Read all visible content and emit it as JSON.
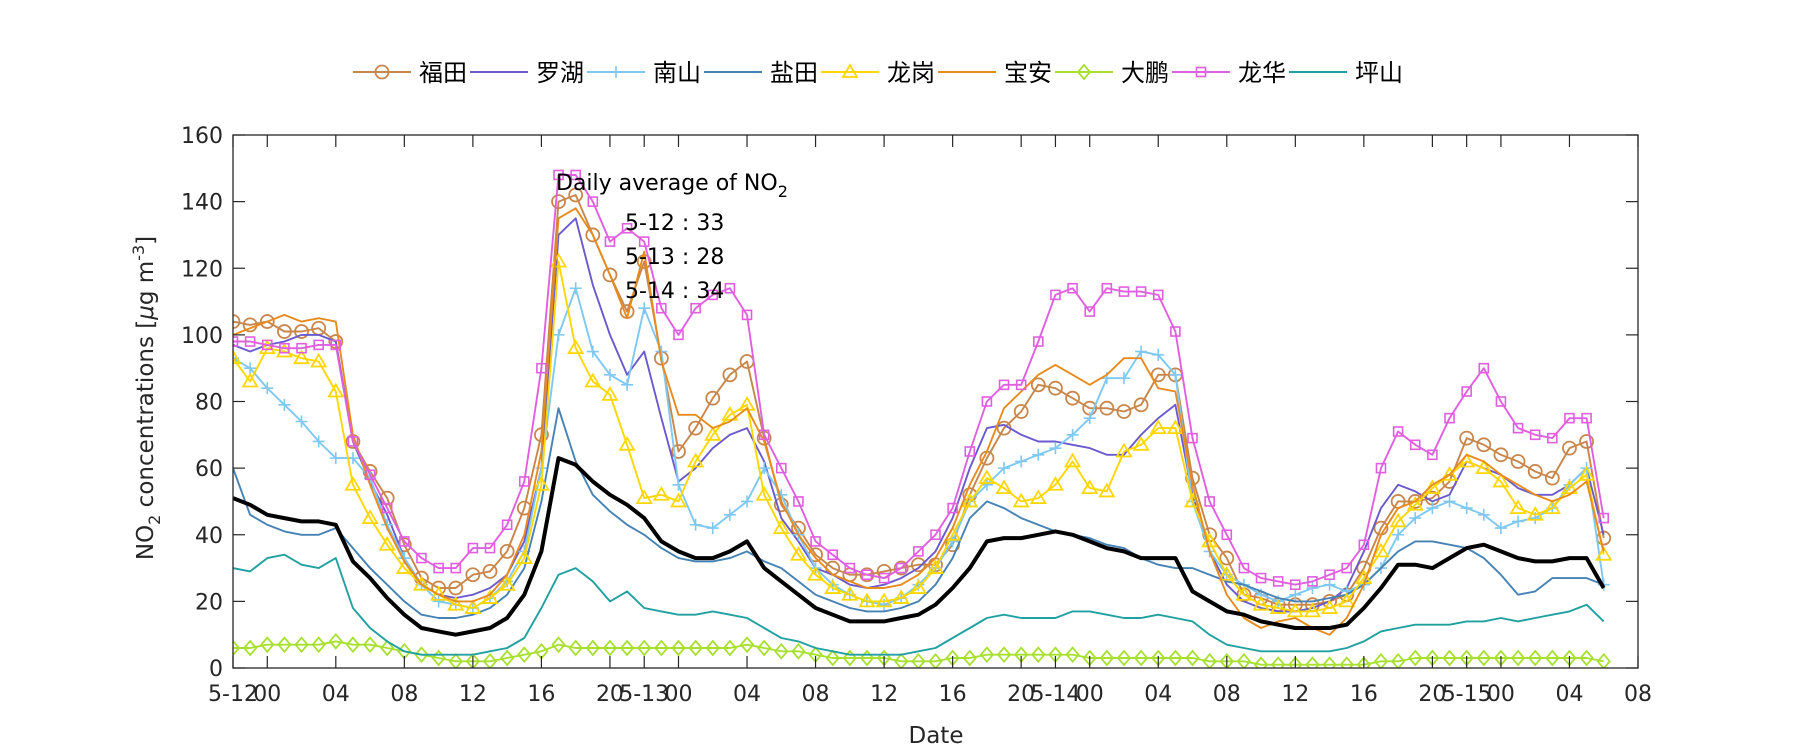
{
  "chart_data": {
    "type": "line",
    "title": "",
    "xlabel": "Date",
    "ylabel_parts": {
      "a": "NO",
      "b": "2",
      "c": " concentrations [",
      "d": "μ",
      "e": "g m",
      "f": "-3",
      "g": "]"
    },
    "ylim": [
      0,
      160
    ],
    "yticks": [
      0,
      20,
      40,
      60,
      80,
      100,
      120,
      140,
      160
    ],
    "x_hours": {
      "start": "5-12 00:00",
      "step_hours": 1,
      "range": [
        -2,
        80
      ]
    },
    "xticks": [
      {
        "h": -2,
        "label": "5-12"
      },
      {
        "h": 0,
        "label": "00"
      },
      {
        "h": 4,
        "label": "04"
      },
      {
        "h": 8,
        "label": "08"
      },
      {
        "h": 12,
        "label": "12"
      },
      {
        "h": 16,
        "label": "16"
      },
      {
        "h": 20,
        "label": "20"
      },
      {
        "h": 22,
        "label": "5-13"
      },
      {
        "h": 24,
        "label": "00"
      },
      {
        "h": 28,
        "label": "04"
      },
      {
        "h": 32,
        "label": "08"
      },
      {
        "h": 36,
        "label": "12"
      },
      {
        "h": 40,
        "label": "16"
      },
      {
        "h": 44,
        "label": "20"
      },
      {
        "h": 46,
        "label": "5-14"
      },
      {
        "h": 48,
        "label": "00"
      },
      {
        "h": 52,
        "label": "04"
      },
      {
        "h": 56,
        "label": "08"
      },
      {
        "h": 60,
        "label": "12"
      },
      {
        "h": 64,
        "label": "16"
      },
      {
        "h": 68,
        "label": "20"
      },
      {
        "h": 70,
        "label": "5-15"
      },
      {
        "h": 72,
        "label": "00"
      },
      {
        "h": 76,
        "label": "04"
      },
      {
        "h": 80,
        "label": "08"
      }
    ],
    "grid": false,
    "legend_placement": "top",
    "annotation": {
      "title_a": "Daily average of NO",
      "title_b": "2",
      "lines": [
        "5-12 : 33",
        "5-13 : 28",
        "5-14 : 34"
      ]
    },
    "series": [
      {
        "name": "福田",
        "color": "#C8864B",
        "marker": "circle",
        "marker_every": 1,
        "start": -2,
        "values": [
          104,
          103,
          104,
          101,
          101,
          102,
          98,
          68,
          59,
          51,
          37,
          27,
          24,
          24,
          28,
          29,
          35,
          48,
          70,
          140,
          142,
          130,
          118,
          107,
          122,
          93,
          65,
          72,
          81,
          88,
          92,
          69,
          49,
          42,
          34,
          30,
          28,
          28,
          29,
          30,
          31,
          31,
          37,
          52,
          63,
          72,
          77,
          85,
          84,
          81,
          78,
          78,
          77,
          79,
          88,
          88,
          57,
          40,
          33,
          22,
          21,
          19,
          19,
          19,
          20,
          22,
          30,
          42,
          50,
          50,
          51,
          56,
          69,
          67,
          64,
          62,
          59,
          57,
          66,
          68,
          39
        ]
      },
      {
        "name": "罗湖",
        "color": "#6A5ACD",
        "marker": "none",
        "start": -2,
        "values": [
          97,
          95,
          97,
          98,
          100,
          100,
          98,
          68,
          56,
          46,
          33,
          25,
          22,
          21,
          22,
          24,
          28,
          38,
          60,
          130,
          135,
          115,
          100,
          88,
          95,
          75,
          56,
          60,
          66,
          70,
          72,
          62,
          45,
          38,
          30,
          28,
          25,
          24,
          25,
          27,
          30,
          35,
          45,
          60,
          72,
          73,
          70,
          68,
          68,
          67,
          66,
          64,
          64,
          70,
          75,
          79,
          52,
          35,
          25,
          20,
          18,
          17,
          17,
          18,
          20,
          24,
          35,
          48,
          55,
          53,
          50,
          52,
          62,
          60,
          58,
          54,
          52,
          52,
          55,
          60,
          40
        ]
      },
      {
        "name": "南山",
        "color": "#7EC8F2",
        "marker": "plus",
        "marker_every": 1,
        "start": -2,
        "values": [
          93,
          90,
          84,
          79,
          74,
          68,
          63,
          63,
          57,
          43,
          33,
          25,
          20,
          19,
          18,
          21,
          26,
          35,
          60,
          100,
          114,
          95,
          88,
          85,
          108,
          95,
          55,
          43,
          42,
          46,
          50,
          60,
          52,
          40,
          30,
          25,
          22,
          20,
          19,
          21,
          25,
          30,
          38,
          50,
          55,
          60,
          62,
          64,
          66,
          70,
          75,
          87,
          87,
          95,
          94,
          88,
          50,
          35,
          28,
          25,
          22,
          20,
          22,
          24,
          25,
          23,
          25,
          30,
          40,
          45,
          48,
          50,
          48,
          46,
          42,
          44,
          45,
          48,
          55,
          60,
          25
        ]
      },
      {
        "name": "盐田",
        "color": "#4682B4",
        "marker": "none",
        "start": -2,
        "values": [
          60,
          46,
          43,
          41,
          40,
          40,
          42,
          36,
          30,
          25,
          20,
          16,
          15,
          15,
          16,
          18,
          22,
          30,
          50,
          78,
          62,
          52,
          47,
          43,
          40,
          36,
          33,
          32,
          32,
          33,
          35,
          32,
          30,
          26,
          22,
          20,
          18,
          17,
          17,
          18,
          20,
          25,
          33,
          45,
          50,
          48,
          45,
          43,
          41,
          40,
          39,
          37,
          36,
          33,
          31,
          30,
          30,
          28,
          26,
          25,
          23,
          21,
          20,
          20,
          21,
          22,
          25,
          30,
          35,
          38,
          38,
          37,
          36,
          33,
          28,
          22,
          23,
          27,
          27,
          27,
          25
        ]
      },
      {
        "name": "龙岗",
        "color": "#FFD700",
        "marker": "triangle",
        "marker_every": 1,
        "start": -2,
        "values": [
          93,
          86,
          96,
          95,
          93,
          92,
          83,
          55,
          45,
          37,
          30,
          25,
          22,
          19,
          18,
          21,
          25,
          33,
          55,
          122,
          96,
          86,
          82,
          67,
          51,
          52,
          50,
          62,
          70,
          76,
          79,
          52,
          42,
          34,
          28,
          24,
          22,
          20,
          20,
          21,
          24,
          30,
          40,
          50,
          57,
          54,
          50,
          51,
          55,
          62,
          54,
          53,
          65,
          67,
          72,
          72,
          50,
          38,
          28,
          22,
          19,
          18,
          17,
          17,
          18,
          20,
          27,
          35,
          44,
          49,
          54,
          58,
          62,
          60,
          56,
          48,
          46,
          48,
          54,
          58,
          34
        ]
      },
      {
        "name": "宝安",
        "color": "#E88B1E",
        "marker": "none",
        "start": -2,
        "values": [
          100,
          102,
          104,
          106,
          104,
          105,
          104,
          70,
          55,
          42,
          32,
          25,
          22,
          20,
          20,
          22,
          28,
          40,
          65,
          135,
          138,
          130,
          118,
          105,
          125,
          92,
          76,
          76,
          72,
          74,
          78,
          68,
          50,
          40,
          33,
          28,
          26,
          24,
          24,
          25,
          28,
          33,
          42,
          55,
          65,
          78,
          83,
          88,
          91,
          88,
          85,
          88,
          93,
          93,
          84,
          83,
          55,
          35,
          22,
          15,
          12,
          14,
          15,
          12,
          10,
          15,
          25,
          40,
          48,
          50,
          55,
          58,
          64,
          62,
          58,
          55,
          52,
          50,
          52,
          56,
          35
        ]
      },
      {
        "name": "大鹏",
        "color": "#A8E030",
        "marker": "diamond",
        "marker_every": 1,
        "start": -2,
        "values": [
          6,
          6,
          7,
          7,
          7,
          7,
          8,
          7,
          7,
          6,
          5,
          4,
          3,
          2,
          2,
          2,
          3,
          4,
          5,
          7,
          6,
          6,
          6,
          6,
          6,
          6,
          6,
          6,
          6,
          6,
          7,
          6,
          5,
          5,
          4,
          3,
          3,
          3,
          3,
          2,
          2,
          2,
          3,
          3,
          4,
          4,
          4,
          4,
          4,
          4,
          3,
          3,
          3,
          3,
          3,
          3,
          3,
          2,
          2,
          2,
          1,
          1,
          1,
          1,
          1,
          1,
          1,
          2,
          2,
          3,
          3,
          3,
          3,
          3,
          3,
          3,
          3,
          3,
          3,
          3,
          2
        ]
      },
      {
        "name": "龙华",
        "color": "#E05FE0",
        "marker": "square",
        "marker_every": 1,
        "start": -2,
        "values": [
          98,
          98,
          97,
          96,
          96,
          97,
          97,
          68,
          58,
          48,
          38,
          33,
          30,
          30,
          36,
          36,
          43,
          56,
          90,
          148,
          148,
          140,
          128,
          132,
          128,
          108,
          100,
          108,
          112,
          114,
          106,
          70,
          60,
          50,
          38,
          34,
          30,
          28,
          27,
          30,
          35,
          40,
          48,
          65,
          80,
          85,
          85,
          98,
          112,
          114,
          107,
          114,
          113,
          113,
          112,
          101,
          69,
          50,
          40,
          30,
          27,
          26,
          25,
          26,
          28,
          30,
          37,
          60,
          71,
          67,
          64,
          75,
          83,
          90,
          80,
          72,
          70,
          69,
          75,
          75,
          45
        ]
      },
      {
        "name": "坪山",
        "color": "#20A0A0",
        "marker": "none",
        "start": -2,
        "values": [
          30,
          29,
          33,
          34,
          31,
          30,
          33,
          18,
          12,
          8,
          5,
          4,
          4,
          4,
          4,
          5,
          6,
          9,
          18,
          28,
          30,
          26,
          20,
          23,
          18,
          17,
          16,
          16,
          17,
          16,
          15,
          12,
          9,
          8,
          6,
          5,
          4,
          4,
          4,
          4,
          5,
          6,
          9,
          12,
          15,
          16,
          15,
          15,
          15,
          17,
          17,
          16,
          15,
          15,
          16,
          15,
          14,
          10,
          7,
          6,
          5,
          5,
          5,
          5,
          5,
          6,
          8,
          11,
          12,
          13,
          13,
          13,
          14,
          14,
          15,
          14,
          15,
          16,
          17,
          19,
          14
        ]
      },
      {
        "name": "",
        "color": "#000000",
        "marker": "none",
        "line_width": 4,
        "start": -2,
        "values": [
          51,
          49,
          46,
          45,
          44,
          44,
          43,
          32,
          27,
          21,
          16,
          12,
          11,
          10,
          11,
          12,
          15,
          22,
          35,
          63,
          61,
          56,
          52,
          49,
          45,
          38,
          35,
          33,
          33,
          35,
          38,
          30,
          26,
          22,
          18,
          16,
          14,
          14,
          14,
          15,
          16,
          19,
          24,
          30,
          38,
          39,
          39,
          40,
          41,
          40,
          38,
          36,
          35,
          33,
          33,
          33,
          23,
          20,
          17,
          16,
          14,
          13,
          12,
          12,
          12,
          13,
          18,
          24,
          31,
          31,
          30,
          33,
          36,
          37,
          35,
          33,
          32,
          32,
          33,
          33,
          24
        ]
      }
    ]
  }
}
